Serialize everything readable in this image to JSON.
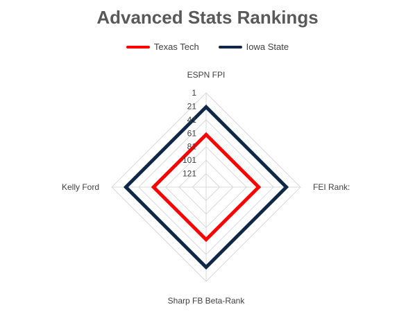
{
  "chart_data": {
    "type": "radar",
    "title": "Advanced Stats Rankings",
    "axes": [
      "ESPN FPI",
      "FEI Rank:",
      "Sharp FB Beta-Rank",
      "Kelly Ford"
    ],
    "scale": {
      "min": 1,
      "max": 141,
      "reversed": true,
      "ticks": [
        1,
        21,
        41,
        61,
        81,
        101,
        121
      ],
      "tick_labels": [
        "1",
        "21",
        "41",
        "61",
        "81",
        "101",
        "121"
      ]
    },
    "grid": true,
    "legend": "top",
    "series": [
      {
        "name": "Texas Tech",
        "color": "#ff0000",
        "values": [
          63,
          63,
          63,
          63
        ]
      },
      {
        "name": "Iowa State",
        "color": "#0f2748",
        "values": [
          22,
          22,
          22,
          22
        ]
      }
    ]
  }
}
